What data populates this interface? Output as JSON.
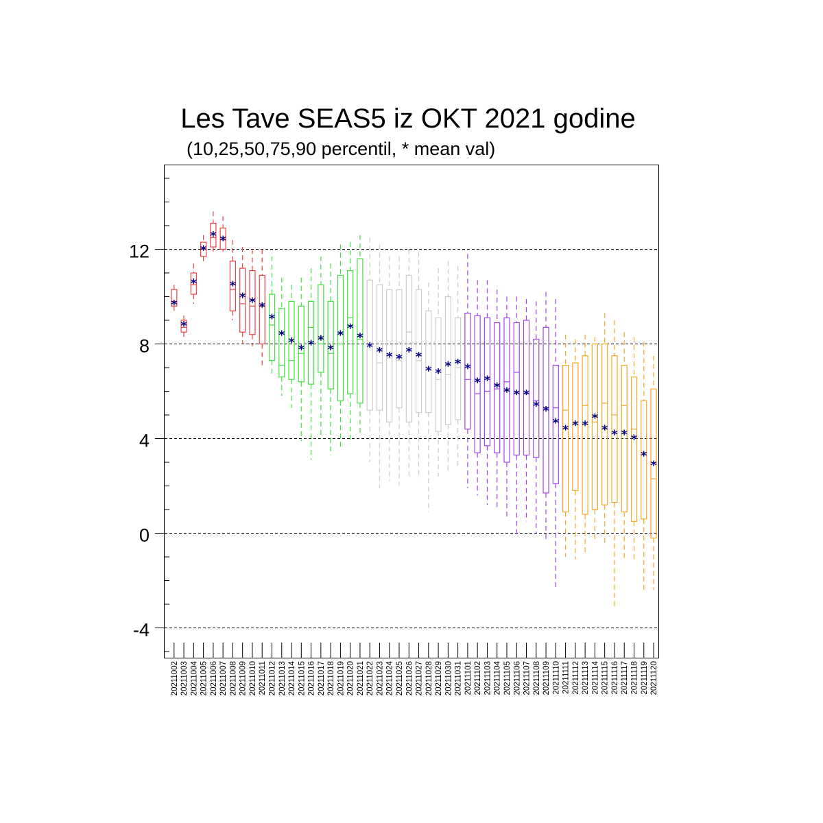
{
  "chart_data": {
    "type": "box",
    "title": "Les Tave SEAS5 iz OKT 2021 godine",
    "subtitle": "(10,25,50,75,90 percentil, * mean val)",
    "xlabel": "",
    "ylabel": "",
    "ylim": [
      -5.3,
      15.5
    ],
    "yticks": [
      12,
      8,
      4,
      0,
      -4
    ],
    "grid": "dashed horizontal at labeled ticks",
    "categories": [
      "20211002",
      "20211003",
      "20211004",
      "20211005",
      "20211006",
      "20211007",
      "20211008",
      "20211009",
      "20211010",
      "20211011",
      "20211012",
      "20211013",
      "20211014",
      "20211015",
      "20211016",
      "20211017",
      "20211018",
      "20211019",
      "20211020",
      "20211021",
      "20211022",
      "20211023",
      "20211024",
      "20211025",
      "20211026",
      "20211027",
      "20211028",
      "20211029",
      "20211030",
      "20211031",
      "20211101",
      "20211102",
      "20211103",
      "20211104",
      "20211105",
      "20211106",
      "20211107",
      "20211108",
      "20211109",
      "20211110",
      "20211111",
      "20211112",
      "20211113",
      "20211114",
      "20211115",
      "20211116",
      "20211117",
      "20211118",
      "20211119",
      "20211120"
    ],
    "colors": [
      "#f04040",
      "#f04040",
      "#f04040",
      "#f04040",
      "#f04040",
      "#f04040",
      "#f04040",
      "#f04040",
      "#f04040",
      "#f04040",
      "#40e040",
      "#40e040",
      "#40e040",
      "#40e040",
      "#40e040",
      "#40e040",
      "#40e040",
      "#40e040",
      "#40e040",
      "#40e040",
      "#cccccc",
      "#cccccc",
      "#cccccc",
      "#cccccc",
      "#cccccc",
      "#cccccc",
      "#cccccc",
      "#cccccc",
      "#cccccc",
      "#cccccc",
      "#a040f0",
      "#a040f0",
      "#a040f0",
      "#a040f0",
      "#a040f0",
      "#a040f0",
      "#a040f0",
      "#a040f0",
      "#a040f0",
      "#a040f0",
      "#f5a623",
      "#f5a623",
      "#f5a623",
      "#f5a623",
      "#f5a623",
      "#f5a623",
      "#f5a623",
      "#f5a623",
      "#f5a623",
      "#f5a623"
    ],
    "mean_color": "#000080",
    "p10": [
      9.3,
      8.3,
      9.7,
      11.5,
      11.8,
      11.9,
      9.0,
      8.0,
      7.9,
      7.1,
      6.7,
      5.8,
      5.3,
      3.9,
      3.1,
      4.0,
      3.3,
      3.6,
      3.8,
      4.2,
      3.0,
      1.9,
      2.2,
      2.0,
      2.3,
      2.3,
      0.9,
      2.4,
      2.6,
      2.8,
      1.9,
      1.6,
      1.2,
      1.0,
      0.6,
      -0.1,
      0.5,
      0.0,
      -0.3,
      -2.3,
      -1.0,
      -1.1,
      -0.9,
      -0.4,
      -0.5,
      -3.2,
      -1.1,
      -1.1,
      -2.5,
      -2.4
    ],
    "p25": [
      9.6,
      8.5,
      10.1,
      11.7,
      12.1,
      12.0,
      9.4,
      8.5,
      8.4,
      8.0,
      7.3,
      6.6,
      6.5,
      6.4,
      6.3,
      6.8,
      6.1,
      5.6,
      5.9,
      5.5,
      5.2,
      5.2,
      4.7,
      5.3,
      4.7,
      5.1,
      5.1,
      4.3,
      4.6,
      4.8,
      4.4,
      3.4,
      3.7,
      3.4,
      3.0,
      3.3,
      3.3,
      3.2,
      1.7,
      2.1,
      0.9,
      1.8,
      0.8,
      1.0,
      1.2,
      1.3,
      0.9,
      0.5,
      0.6,
      -0.2
    ],
    "p50": [
      9.8,
      8.7,
      10.5,
      12.0,
      12.5,
      12.4,
      10.3,
      9.7,
      9.6,
      9.6,
      8.8,
      7.1,
      7.3,
      7.6,
      8.7,
      8.0,
      7.6,
      8.0,
      9.1,
      8.2,
      7.9,
      7.2,
      7.4,
      7.3,
      8.5,
      7.3,
      7.0,
      6.5,
      6.7,
      7.0,
      6.5,
      5.9,
      6.0,
      6.1,
      6.4,
      6.8,
      5.9,
      5.6,
      5.3,
      5.3,
      5.2,
      4.7,
      5.4,
      4.7,
      5.5,
      5.0,
      5.4,
      4.4,
      3.4,
      2.3
    ],
    "p75": [
      10.3,
      9.0,
      11.0,
      12.3,
      13.1,
      12.9,
      11.5,
      11.2,
      11.1,
      10.9,
      10.1,
      9.5,
      9.8,
      9.6,
      9.8,
      10.5,
      9.8,
      10.9,
      11.1,
      11.6,
      10.7,
      10.5,
      10.3,
      10.3,
      10.9,
      10.3,
      9.4,
      9.1,
      10.0,
      9.1,
      9.3,
      9.2,
      9.1,
      8.9,
      9.1,
      8.9,
      9.0,
      8.2,
      8.7,
      7.1,
      7.1,
      7.2,
      7.5,
      8.0,
      8.0,
      7.5,
      7.1,
      6.6,
      5.6,
      6.1
    ],
    "p90": [
      10.5,
      9.2,
      11.4,
      12.6,
      13.6,
      13.4,
      12.4,
      12.1,
      12.0,
      12.0,
      11.7,
      10.8,
      10.5,
      10.8,
      11.2,
      11.7,
      11.4,
      12.2,
      12.3,
      12.6,
      12.5,
      12.2,
      11.7,
      11.7,
      12.0,
      11.9,
      10.6,
      11.2,
      11.5,
      11.3,
      11.8,
      10.7,
      10.7,
      10.3,
      10.0,
      10.0,
      9.9,
      9.8,
      10.2,
      9.9,
      8.4,
      8.2,
      8.4,
      8.3,
      9.3,
      9.0,
      8.5,
      8.3,
      8.1,
      7.5
    ],
    "mean": [
      9.7,
      8.8,
      10.6,
      12.0,
      12.6,
      12.4,
      10.5,
      10.0,
      9.8,
      9.6,
      9.1,
      8.4,
      8.1,
      7.8,
      8.0,
      8.2,
      7.8,
      8.4,
      8.7,
      8.3,
      7.9,
      7.7,
      7.5,
      7.4,
      7.7,
      7.5,
      6.9,
      6.8,
      7.1,
      7.2,
      7.0,
      6.4,
      6.5,
      6.2,
      6.0,
      5.9,
      5.9,
      5.4,
      5.2,
      4.7,
      4.4,
      4.6,
      4.6,
      4.9,
      4.4,
      4.2,
      4.2,
      4.0,
      3.3,
      2.9
    ]
  }
}
